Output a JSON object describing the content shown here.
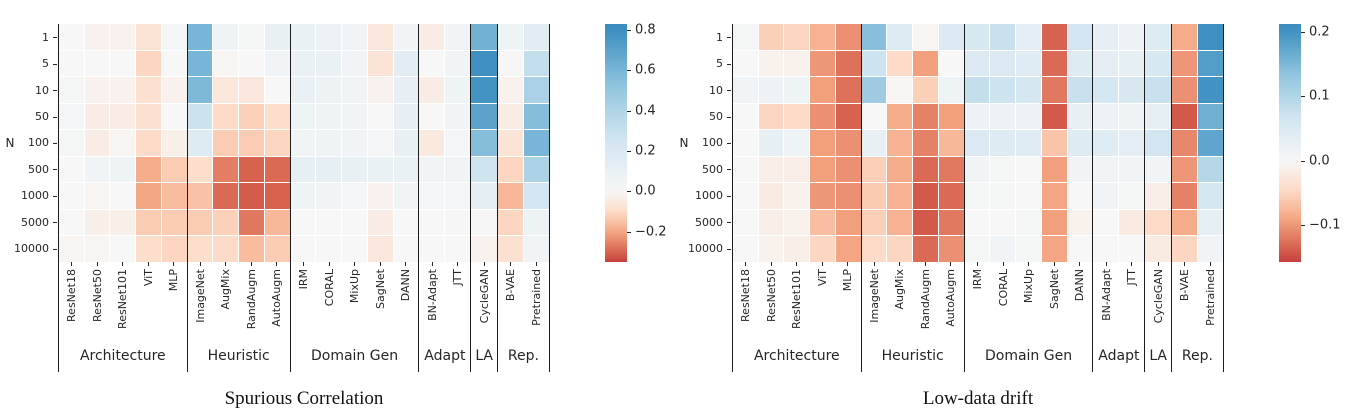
{
  "palette": {
    "rdbu_anchors": [
      "#67001f",
      "#b2182b",
      "#d6604d",
      "#f4a582",
      "#fddbc7",
      "#f7f7f7",
      "#d1e5f0",
      "#92c5de",
      "#4393c3",
      "#2166ac",
      "#053061"
    ],
    "separator_color": "#1c1c1c",
    "tick_color": "#262626"
  },
  "chart_data": [
    {
      "type": "heatmap",
      "title": "Spurious Correlation",
      "ylabel": "N",
      "row_labels": [
        "1",
        "5",
        "10",
        "50",
        "100",
        "500",
        "1000",
        "5000",
        "10000"
      ],
      "groups": [
        {
          "label": "Architecture",
          "columns": [
            "ResNet18",
            "ResNet50",
            "ResNet101",
            "ViT",
            "MLP"
          ]
        },
        {
          "label": "Heuristic",
          "columns": [
            "ImageNet",
            "AugMix",
            "RandAugm",
            "AutoAugm"
          ]
        },
        {
          "label": "Domain Gen",
          "columns": [
            "IRM",
            "CORAL",
            "MixUp",
            "SagNet",
            "DANN"
          ]
        },
        {
          "label": "Adapt",
          "columns": [
            "BN-Adapt",
            "JTT"
          ]
        },
        {
          "label": "LA",
          "columns": [
            "CycleGAN"
          ]
        },
        {
          "label": "Rep.",
          "columns": [
            "B-VAE",
            "Pretrained"
          ]
        }
      ],
      "colorbar": {
        "vmin": -0.35,
        "vmax": 0.83,
        "pmin": 0.155,
        "pmax": 0.82,
        "ticks": [
          {
            "value": 0.8,
            "label": "0.8"
          },
          {
            "value": 0.6,
            "label": "0.6"
          },
          {
            "value": 0.4,
            "label": "0.4"
          },
          {
            "value": 0.2,
            "label": "0.2"
          },
          {
            "value": 0.0,
            "label": "0.0"
          },
          {
            "value": -0.2,
            "label": "−0.2"
          }
        ]
      },
      "values": [
        [
          0.0,
          -0.02,
          -0.02,
          -0.07,
          0.03,
          0.6,
          0.06,
          0.02,
          0.1,
          0.09,
          0.08,
          0.04,
          -0.06,
          0.05,
          -0.04,
          0.04,
          0.62,
          0.06,
          0.14
        ],
        [
          0.0,
          0.0,
          0.0,
          -0.11,
          0.0,
          0.6,
          -0.01,
          0.0,
          0.05,
          0.09,
          0.09,
          0.05,
          -0.07,
          0.14,
          0.0,
          0.05,
          0.8,
          0.01,
          0.32
        ],
        [
          0.02,
          -0.02,
          -0.02,
          -0.08,
          -0.02,
          0.58,
          -0.06,
          -0.06,
          0.0,
          0.09,
          0.07,
          0.05,
          -0.02,
          0.11,
          -0.04,
          0.06,
          0.78,
          -0.02,
          0.42
        ],
        [
          0.03,
          -0.04,
          -0.04,
          -0.08,
          0.0,
          0.28,
          -0.1,
          -0.12,
          -0.09,
          0.06,
          0.06,
          0.04,
          0.0,
          0.11,
          0.0,
          0.04,
          0.7,
          -0.04,
          0.56
        ],
        [
          0.02,
          -0.04,
          -0.01,
          -0.1,
          -0.03,
          0.17,
          -0.13,
          -0.13,
          -0.11,
          0.05,
          0.06,
          0.04,
          0.03,
          0.1,
          -0.05,
          0.03,
          0.56,
          -0.07,
          0.6
        ],
        [
          0.0,
          0.04,
          0.06,
          -0.19,
          -0.13,
          -0.09,
          -0.26,
          -0.3,
          -0.29,
          0.12,
          0.12,
          0.1,
          0.09,
          0.09,
          0.05,
          0.05,
          0.27,
          -0.11,
          0.41
        ],
        [
          0.0,
          -0.01,
          0.0,
          -0.2,
          -0.16,
          -0.15,
          -0.29,
          -0.31,
          -0.3,
          0.06,
          0.05,
          0.03,
          -0.02,
          0.04,
          0.03,
          0.03,
          0.13,
          -0.17,
          0.24
        ],
        [
          0.0,
          -0.03,
          -0.03,
          -0.13,
          -0.13,
          -0.13,
          -0.12,
          -0.27,
          -0.17,
          0.0,
          0.0,
          0.0,
          -0.04,
          0.0,
          0.0,
          0.01,
          0.01,
          -0.11,
          0.07
        ],
        [
          -0.01,
          -0.01,
          0.0,
          -0.09,
          -0.11,
          -0.09,
          -0.1,
          -0.16,
          -0.13,
          0.0,
          0.0,
          0.0,
          -0.06,
          0.0,
          0.0,
          0.0,
          -0.02,
          -0.08,
          0.04
        ]
      ]
    },
    {
      "type": "heatmap",
      "title": "Low-data drift",
      "ylabel": "N",
      "row_labels": [
        "1",
        "5",
        "10",
        "50",
        "100",
        "500",
        "1000",
        "5000",
        "10000"
      ],
      "groups": [
        {
          "label": "Architecture",
          "columns": [
            "ResNet18",
            "ResNet50",
            "ResNet101",
            "ViT",
            "MLP"
          ]
        },
        {
          "label": "Heuristic",
          "columns": [
            "ImageNet",
            "AugMix",
            "RandAugm",
            "AutoAugm"
          ]
        },
        {
          "label": "Domain Gen",
          "columns": [
            "IRM",
            "CORAL",
            "MixUp",
            "SagNet",
            "DANN"
          ]
        },
        {
          "label": "Adapt",
          "columns": [
            "BN-Adapt",
            "JTT"
          ]
        },
        {
          "label": "LA",
          "columns": [
            "CycleGAN"
          ]
        },
        {
          "label": "Rep.",
          "columns": [
            "B-VAE",
            "Pretrained"
          ]
        }
      ],
      "colorbar": {
        "vmin": -0.157,
        "vmax": 0.212,
        "pmin": 0.155,
        "pmax": 0.82,
        "ticks": [
          {
            "value": 0.2,
            "label": "0.2"
          },
          {
            "value": 0.1,
            "label": "0.1"
          },
          {
            "value": 0.0,
            "label": "0.0"
          },
          {
            "value": -0.1,
            "label": "−0.1"
          }
        ]
      },
      "values": [
        [
          0.005,
          -0.055,
          -0.05,
          -0.08,
          -0.105,
          0.14,
          0.045,
          -0.005,
          0.05,
          0.055,
          0.075,
          0.035,
          -0.135,
          0.065,
          0.03,
          0.02,
          0.045,
          -0.085,
          0.205
        ],
        [
          0.0,
          -0.01,
          -0.01,
          -0.1,
          -0.125,
          0.07,
          -0.045,
          -0.095,
          0.0,
          0.05,
          0.05,
          0.04,
          -0.13,
          0.045,
          0.035,
          0.03,
          0.055,
          -0.1,
          0.185
        ],
        [
          0.01,
          0.02,
          0.015,
          -0.095,
          -0.125,
          0.12,
          -0.005,
          -0.055,
          0.015,
          0.08,
          0.07,
          0.06,
          -0.12,
          0.075,
          0.06,
          0.055,
          0.075,
          -0.105,
          0.2
        ],
        [
          0.0,
          -0.05,
          -0.045,
          -0.105,
          -0.135,
          0.0,
          -0.085,
          -0.115,
          -0.095,
          0.02,
          0.02,
          0.02,
          -0.14,
          0.025,
          0.02,
          0.015,
          0.03,
          -0.14,
          0.16
        ],
        [
          0.0,
          0.03,
          0.015,
          -0.095,
          -0.105,
          0.025,
          -0.08,
          -0.115,
          -0.075,
          0.05,
          0.045,
          0.04,
          -0.065,
          0.045,
          0.04,
          0.035,
          0.065,
          -0.11,
          0.175
        ],
        [
          0.0,
          -0.015,
          -0.015,
          -0.095,
          -0.105,
          -0.055,
          -0.085,
          -0.13,
          -0.12,
          0.01,
          0.005,
          0.0,
          -0.095,
          0.01,
          0.01,
          0.01,
          0.01,
          -0.1,
          0.095
        ],
        [
          0.0,
          -0.02,
          -0.01,
          -0.1,
          -0.105,
          -0.06,
          -0.08,
          -0.14,
          -0.13,
          0.005,
          0.005,
          0.0,
          -0.09,
          0.0,
          0.01,
          0.005,
          -0.015,
          -0.115,
          0.06
        ],
        [
          0.0,
          -0.015,
          -0.01,
          -0.07,
          -0.095,
          -0.055,
          -0.08,
          -0.14,
          -0.12,
          0.0,
          0.0,
          0.005,
          -0.095,
          -0.01,
          0.0,
          -0.02,
          -0.045,
          -0.085,
          0.03
        ],
        [
          0.0,
          -0.01,
          -0.015,
          -0.05,
          -0.09,
          -0.045,
          -0.05,
          -0.13,
          -0.105,
          0.005,
          0.01,
          0.005,
          -0.09,
          0.0,
          0.0,
          0.0,
          -0.02,
          -0.05,
          0.01
        ]
      ]
    }
  ]
}
